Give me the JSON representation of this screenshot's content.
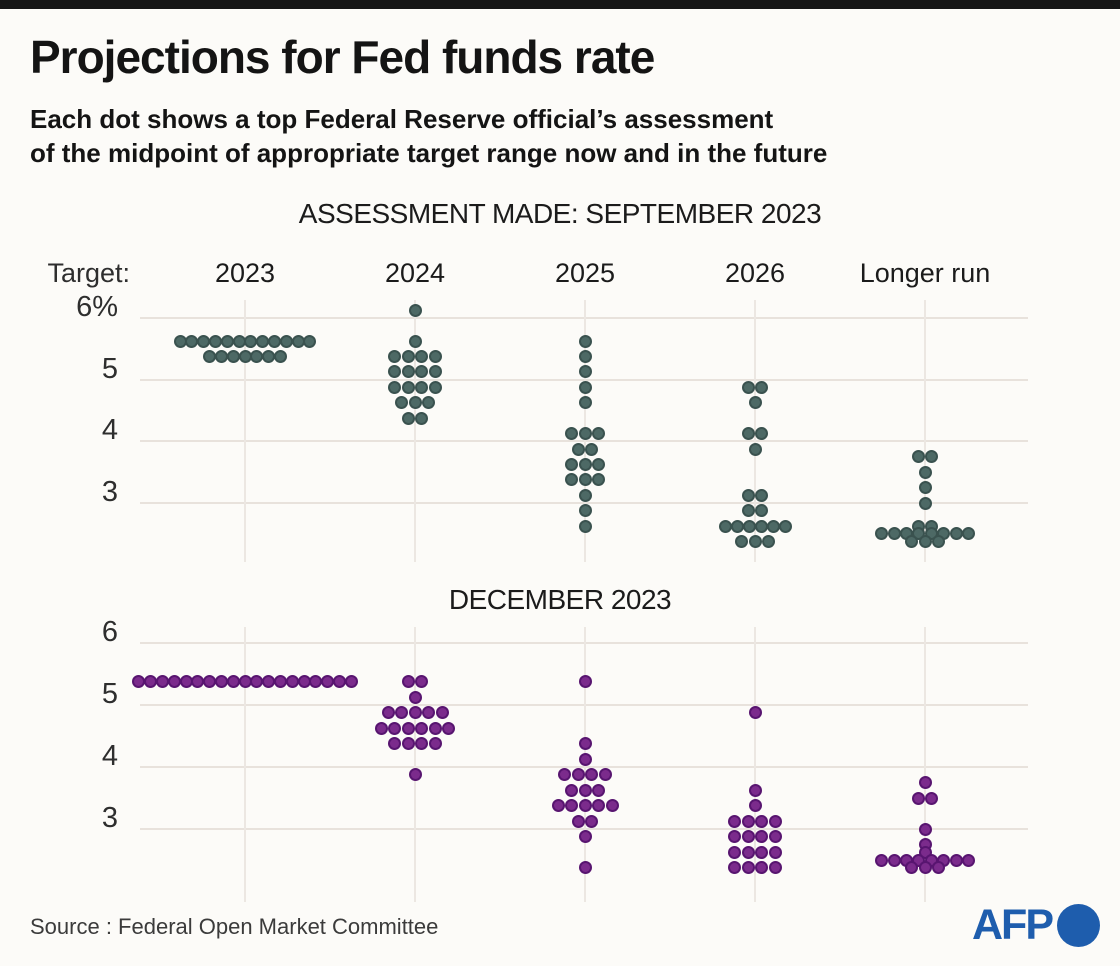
{
  "page": {
    "title": "Projections for Fed funds rate",
    "subtitle_lines": [
      "Each dot shows a top Federal Reserve official’s assessment",
      "of the midpoint of appropriate target range now and in the future"
    ],
    "source": "Source : Federal Open Market Committee",
    "logo_text": "AFP"
  },
  "colors": {
    "september_dot": "#4d6965",
    "september_dot_outline": "#3a524f",
    "december_dot": "#7b2b8c",
    "december_dot_outline": "#581570",
    "afp_blue": "#1e5dad",
    "grid": "#e8e2dc"
  },
  "chart_data": [
    {
      "type": "scatter",
      "title": "ASSESSMENT MADE: SEPTEMBER 2023",
      "y_axis_label": "Target:",
      "unit": "percent",
      "ylim": [
        2.25,
        6.25
      ],
      "grid": true,
      "y_ticks": [
        {
          "label": "6%",
          "value": 6
        },
        {
          "label": "5",
          "value": 5
        },
        {
          "label": "4",
          "value": 4
        },
        {
          "label": "3",
          "value": 3
        }
      ],
      "show_column_headers": true,
      "dot_color": "#4d6965",
      "dot_outline": "#3a524f",
      "dots_format": "[rate_percent_midpoint, num_officials, dot_spacing_px_optional]",
      "columns": [
        {
          "label": "2023",
          "dots": [
            [
              5.625,
              12,
              11.8
            ],
            [
              5.375,
              7,
              11.8
            ]
          ]
        },
        {
          "label": "2024",
          "dots": [
            [
              6.125,
              1
            ],
            [
              5.625,
              1
            ],
            [
              5.375,
              4
            ],
            [
              5.125,
              4
            ],
            [
              4.875,
              4
            ],
            [
              4.625,
              3
            ],
            [
              4.375,
              2
            ]
          ]
        },
        {
          "label": "2025",
          "dots": [
            [
              5.625,
              1
            ],
            [
              5.375,
              1
            ],
            [
              5.125,
              1
            ],
            [
              4.875,
              1
            ],
            [
              4.625,
              1
            ],
            [
              4.125,
              3
            ],
            [
              3.875,
              2
            ],
            [
              3.625,
              3
            ],
            [
              3.375,
              3
            ],
            [
              3.125,
              1
            ],
            [
              2.875,
              1
            ],
            [
              2.625,
              1
            ]
          ]
        },
        {
          "label": "2026",
          "dots": [
            [
              4.875,
              2
            ],
            [
              4.625,
              1
            ],
            [
              4.125,
              2
            ],
            [
              3.875,
              1
            ],
            [
              3.125,
              2
            ],
            [
              2.875,
              2
            ],
            [
              2.625,
              6,
              12
            ],
            [
              2.375,
              3
            ]
          ]
        },
        {
          "label": "Longer run",
          "dots": [
            [
              3.75,
              2
            ],
            [
              3.5,
              1
            ],
            [
              3.25,
              1
            ],
            [
              3.0,
              1
            ],
            [
              2.625,
              2
            ],
            [
              2.5,
              8,
              12.4
            ],
            [
              2.375,
              3
            ]
          ]
        }
      ]
    },
    {
      "type": "scatter",
      "title": "DECEMBER 2023",
      "y_axis_label": "",
      "unit": "percent",
      "ylim": [
        2.25,
        6.25
      ],
      "grid": true,
      "y_ticks": [
        {
          "label": "6",
          "value": 6
        },
        {
          "label": "5",
          "value": 5
        },
        {
          "label": "4",
          "value": 4
        },
        {
          "label": "3",
          "value": 3
        }
      ],
      "show_column_headers": false,
      "dot_color": "#7b2b8c",
      "dot_outline": "#581570",
      "dots_format": "[rate_percent_midpoint, num_officials, dot_spacing_px_optional]",
      "columns": [
        {
          "label": "2023",
          "dots": [
            [
              5.375,
              19,
              11.8
            ]
          ]
        },
        {
          "label": "2024",
          "dots": [
            [
              5.375,
              2
            ],
            [
              5.125,
              1
            ],
            [
              4.875,
              5
            ],
            [
              4.625,
              6
            ],
            [
              4.375,
              4
            ],
            [
              3.875,
              1
            ]
          ]
        },
        {
          "label": "2025",
          "dots": [
            [
              5.375,
              1
            ],
            [
              4.375,
              1
            ],
            [
              4.125,
              1
            ],
            [
              3.875,
              4
            ],
            [
              3.625,
              3
            ],
            [
              3.375,
              5
            ],
            [
              3.125,
              2
            ],
            [
              2.875,
              1
            ],
            [
              2.375,
              1
            ]
          ]
        },
        {
          "label": "2026",
          "dots": [
            [
              4.875,
              1
            ],
            [
              3.625,
              1
            ],
            [
              3.375,
              1
            ],
            [
              3.125,
              4
            ],
            [
              2.875,
              4
            ],
            [
              2.625,
              4
            ],
            [
              2.375,
              4
            ]
          ]
        },
        {
          "label": "Longer run",
          "dots": [
            [
              3.75,
              1
            ],
            [
              3.5,
              2
            ],
            [
              3.0,
              1
            ],
            [
              2.75,
              1
            ],
            [
              2.625,
              1
            ],
            [
              2.5,
              8,
              12.4
            ],
            [
              2.375,
              3
            ]
          ]
        }
      ]
    }
  ]
}
